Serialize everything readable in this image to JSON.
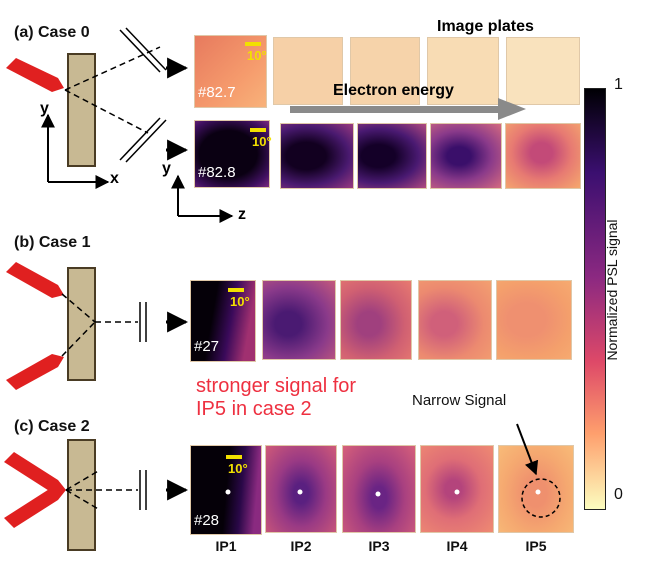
{
  "cases": [
    {
      "label": "(a) Case 0"
    },
    {
      "label": "(b) Case 1"
    },
    {
      "label": "(c) Case 2"
    }
  ],
  "header": {
    "image_plates": "Image plates",
    "electron_energy": "Electron energy"
  },
  "axes": {
    "y": "y",
    "x": "x",
    "z": "z"
  },
  "rows": [
    {
      "shot_id": "#82.7",
      "angle": "10°"
    },
    {
      "shot_id": "#82.8",
      "angle": "10°"
    },
    {
      "shot_id": "#27",
      "angle": "10°"
    },
    {
      "shot_id": "#28",
      "angle": "10°"
    }
  ],
  "ip_labels": [
    "IP1",
    "IP2",
    "IP3",
    "IP4",
    "IP5"
  ],
  "colorbar": {
    "label": "Normalized PSL signal",
    "max": "1",
    "min": "0",
    "colors": [
      "#fdf5c9",
      "#f5a36f",
      "#d24e70",
      "#7a1a86",
      "#000004"
    ]
  },
  "annotations": {
    "stronger_line1": "stronger signal for",
    "stronger_line2": "IP5 in case 2",
    "narrow_signal": "Narrow Signal"
  },
  "colors": {
    "arrow_red": "#e02020",
    "target": "#c8b993",
    "annotation_red": "#ee3040",
    "scale_bar": "#f2e000"
  }
}
